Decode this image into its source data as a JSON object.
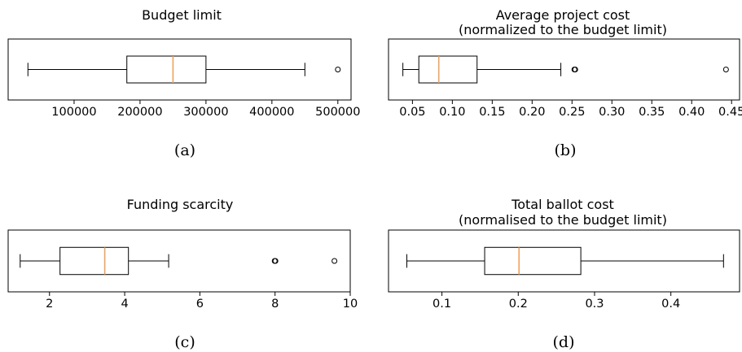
{
  "chart_data": [
    {
      "type": "boxplot",
      "title": [
        "Budget limit"
      ],
      "caption": "(a)",
      "xlim": [
        0,
        520000
      ],
      "xticks": [
        100000,
        200000,
        300000,
        400000,
        500000
      ],
      "xtick_labels": [
        "100000",
        "200000",
        "300000",
        "400000",
        "500000"
      ],
      "whisker_low": 30000,
      "q1": 180000,
      "median": 250000,
      "q3": 300000,
      "whisker_high": 450000,
      "outliers": [
        500000
      ],
      "colors": {
        "box": "#000000",
        "median": "#f2a25a"
      }
    },
    {
      "type": "boxplot",
      "title": [
        "Average project cost",
        "(normalized to the budget limit)"
      ],
      "caption": "(b)",
      "xlim": [
        0.02,
        0.46
      ],
      "xticks": [
        0.05,
        0.1,
        0.15,
        0.2,
        0.25,
        0.3,
        0.35,
        0.4,
        0.45
      ],
      "xtick_labels": [
        "0.05",
        "0.10",
        "0.15",
        "0.20",
        "0.25",
        "0.30",
        "0.35",
        "0.40",
        "0.45"
      ],
      "whisker_low": 0.038,
      "q1": 0.058,
      "median": 0.083,
      "q3": 0.131,
      "whisker_high": 0.236,
      "outliers": [
        0.253,
        0.254,
        0.443
      ],
      "colors": {
        "box": "#000000",
        "median": "#f2a25a"
      }
    },
    {
      "type": "boxplot",
      "title": [
        "Funding scarcity"
      ],
      "caption": "(c)",
      "xlim": [
        0.9,
        10.0
      ],
      "xticks": [
        2,
        4,
        6,
        8,
        10
      ],
      "xtick_labels": [
        "2",
        "4",
        "6",
        "8",
        "10"
      ],
      "whisker_low": 1.22,
      "q1": 2.28,
      "median": 3.47,
      "q3": 4.1,
      "whisker_high": 5.17,
      "outliers": [
        7.99,
        8.01,
        9.58
      ],
      "colors": {
        "box": "#000000",
        "median": "#f2a25a"
      }
    },
    {
      "type": "boxplot",
      "title": [
        "Total ballot cost",
        "(normalised to the budget limit)"
      ],
      "caption": "(d)",
      "xlim": [
        0.03,
        0.49
      ],
      "xticks": [
        0.1,
        0.2,
        0.3,
        0.4
      ],
      "xtick_labels": [
        "0.1",
        "0.2",
        "0.3",
        "0.4"
      ],
      "whisker_low": 0.054,
      "q1": 0.156,
      "median": 0.201,
      "q3": 0.282,
      "whisker_high": 0.469,
      "outliers": [],
      "colors": {
        "box": "#000000",
        "median": "#f2a25a"
      }
    }
  ]
}
